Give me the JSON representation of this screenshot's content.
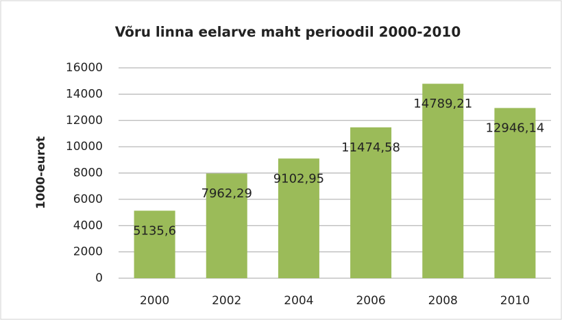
{
  "chart_data": {
    "type": "bar",
    "title": "Võru linna eelarve maht perioodil 2000-2010",
    "y_axis_label": "1000-eurot",
    "categories": [
      "2000",
      "2002",
      "2004",
      "2006",
      "2008",
      "2010"
    ],
    "values": [
      5135.6,
      7962.29,
      9102.95,
      11474.58,
      14789.21,
      12946.14
    ],
    "value_labels": [
      "5135,6",
      "7962,29",
      "9102,95",
      "11474,58",
      "14789,21",
      "12946,14"
    ],
    "color": "#9bbb59",
    "ylim": [
      0,
      16000
    ],
    "yticks": [
      0,
      2000,
      4000,
      6000,
      8000,
      10000,
      12000,
      14000,
      16000
    ],
    "grid": true
  }
}
